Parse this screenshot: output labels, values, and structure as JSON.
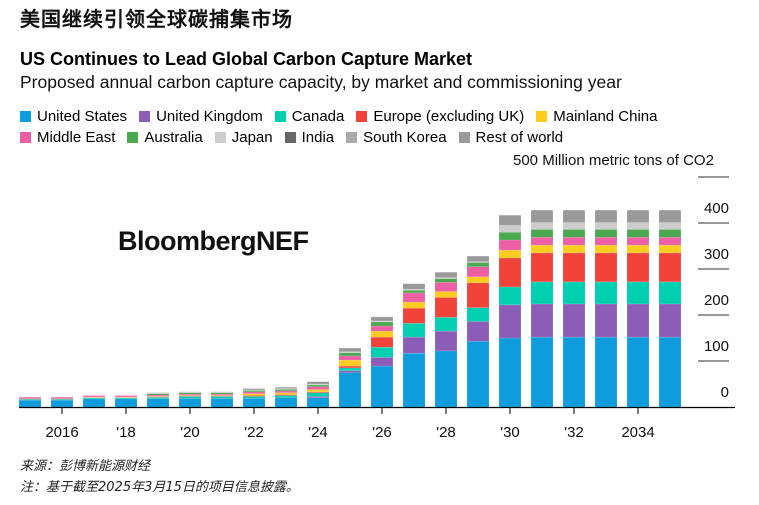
{
  "header": {
    "chinese_title": "美国继续引领全球碳捕集市场"
  },
  "chart_data": {
    "type": "bar",
    "stacked": true,
    "title": "US Continues to Lead Global Carbon Capture Market",
    "subtitle": "Proposed annual carbon capture capacity, by market and commissioning year",
    "ylabel": "Million metric tons of CO2",
    "unit_label": "500 Million metric tons of CO2",
    "ylim": [
      0,
      500
    ],
    "yticks": [
      0,
      100,
      200,
      300,
      400,
      500
    ],
    "ytick_labels": [
      "0",
      "100",
      "200",
      "300",
      "400"
    ],
    "legend_position": "top-left",
    "grid": true,
    "categories": [
      "2015",
      "2016",
      "2017",
      "2018",
      "2019",
      "2020",
      "2021",
      "2022",
      "2023",
      "2024",
      "2025",
      "2026",
      "2027",
      "2028",
      "2029",
      "2030",
      "2031",
      "2032",
      "2033",
      "2034",
      "2035"
    ],
    "xtick_years": [
      "2016",
      "2018",
      "2020",
      "2022",
      "2024",
      "2026",
      "2028",
      "2030",
      "2032",
      "2034"
    ],
    "xtick_labels": [
      "2016",
      "'18",
      "'20",
      "'22",
      "'24",
      "'26",
      "'28",
      "'30",
      "'32",
      "2034"
    ],
    "series": [
      {
        "name": "United States",
        "color": "#0f9cdc",
        "values": [
          15,
          15,
          18,
          18,
          18,
          19,
          19,
          19,
          21,
          20,
          75,
          89,
          117,
          122,
          143,
          150,
          152,
          152,
          152,
          152,
          152
        ]
      },
      {
        "name": "United Kingdom",
        "color": "#8c5db6",
        "values": [
          0,
          0,
          0,
          0,
          0,
          0,
          0,
          0,
          0,
          3,
          4,
          19,
          35,
          43,
          43,
          72,
          72,
          72,
          72,
          72,
          72
        ]
      },
      {
        "name": "Canada",
        "color": "#00d0b0",
        "values": [
          2,
          2,
          2,
          2,
          3,
          4,
          4,
          4,
          4,
          8,
          6,
          22,
          30,
          30,
          30,
          39,
          48,
          48,
          48,
          48,
          48
        ]
      },
      {
        "name": "Europe (excluding UK)",
        "color": "#f0443a",
        "values": [
          1,
          1,
          1,
          1,
          1,
          1,
          1,
          2,
          2,
          2,
          4,
          22,
          33,
          43,
          54,
          63,
          63,
          63,
          63,
          63,
          63
        ]
      },
      {
        "name": "Mainland China",
        "color": "#ffcb1f",
        "values": [
          0,
          0,
          1,
          1,
          1,
          1,
          1,
          4,
          4,
          5,
          13,
          13,
          13,
          13,
          13,
          17,
          17,
          17,
          17,
          17,
          17
        ]
      },
      {
        "name": "Middle East",
        "color": "#ec5fa4",
        "values": [
          3,
          3,
          3,
          3,
          3,
          3,
          3,
          4,
          4,
          6,
          9,
          11,
          20,
          20,
          22,
          22,
          17,
          17,
          17,
          17,
          17
        ]
      },
      {
        "name": "Australia",
        "color": "#4aa84e",
        "values": [
          0,
          0,
          0,
          0,
          3,
          3,
          3,
          3,
          3,
          4,
          7,
          9,
          6,
          8,
          9,
          17,
          17,
          17,
          17,
          17,
          17
        ]
      },
      {
        "name": "Japan",
        "color": "#cccccc",
        "values": [
          0,
          0,
          0,
          0,
          1,
          1,
          1,
          1,
          2,
          2,
          2,
          2,
          2,
          2,
          2,
          15,
          15,
          15,
          15,
          15,
          15
        ]
      },
      {
        "name": "India",
        "color": "#666666",
        "values": [
          0,
          0,
          0,
          0,
          0,
          0,
          0,
          0,
          0,
          0,
          0,
          0,
          0,
          0,
          0,
          0,
          0,
          0,
          0,
          0,
          0
        ]
      },
      {
        "name": "South Korea",
        "color": "#aaaaaa",
        "values": [
          0,
          0,
          0,
          0,
          0,
          0,
          0,
          0,
          0,
          0,
          0,
          0,
          0,
          0,
          0,
          0,
          0,
          0,
          0,
          0,
          0
        ]
      },
      {
        "name": "Rest of world",
        "color": "#9a9a9a",
        "values": [
          1,
          1,
          0,
          0,
          1,
          1,
          1,
          3,
          3,
          5,
          8,
          9,
          12,
          12,
          12,
          22,
          27,
          27,
          27,
          27,
          27
        ]
      }
    ],
    "watermark": "BloombergNEF"
  },
  "footer": {
    "source": "来源：彭博新能源财经",
    "note": "注：基于截至2025年3月15日的项目信息披露。"
  }
}
